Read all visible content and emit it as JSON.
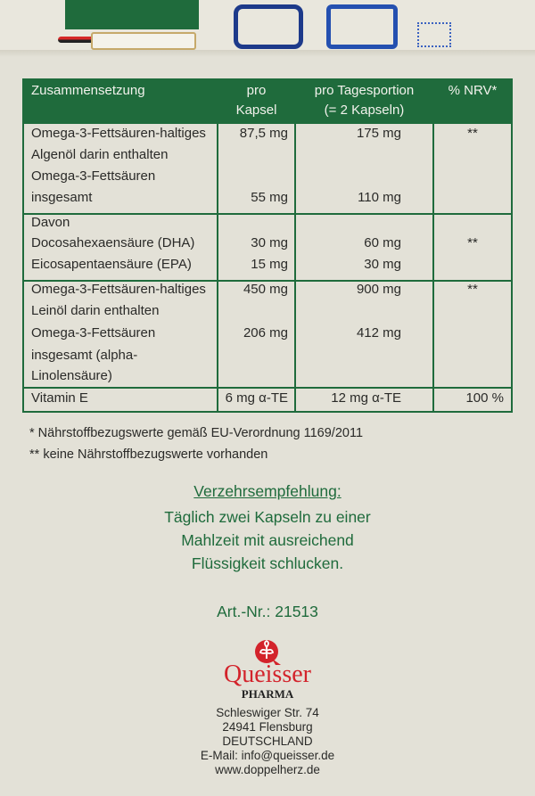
{
  "table": {
    "headers": [
      "Zusammensetzung",
      "pro\nKapsel",
      "pro Tagesportion\n(= 2 Kapseln)",
      "% NRV*"
    ],
    "header_lines": {
      "c1": [
        "pro",
        "Kapsel"
      ],
      "c2": [
        "pro Tagesportion",
        "(= 2 Kapseln)"
      ]
    },
    "rows": [
      {
        "name": "Omega-3-Fettsäuren-haltiges",
        "kapsel": "87,5 mg",
        "tag": "175 mg",
        "nrv": "**"
      },
      {
        "name": "Algenöl darin enthalten"
      },
      {
        "name": "Omega-3-Fettsäuren"
      },
      {
        "name": "insgesamt",
        "kapsel": "55 mg",
        "tag": "110 mg"
      },
      {
        "name": "Davon"
      },
      {
        "name": "Docosahexaensäure (DHA)",
        "kapsel": "30 mg",
        "tag": "60 mg",
        "nrv": "**"
      },
      {
        "name": "Eicosapentaensäure (EPA)",
        "kapsel": "15 mg",
        "tag": "30 mg"
      },
      {
        "name": "Omega-3-Fettsäuren-haltiges",
        "kapsel": "450 mg",
        "tag": "900 mg",
        "nrv": "**"
      },
      {
        "name": "Leinöl darin enthalten"
      },
      {
        "name": "Omega-3-Fettsäuren",
        "kapsel": "206 mg",
        "tag": "412 mg"
      },
      {
        "name": "insgesamt (alpha-"
      },
      {
        "name": "Linolensäure)"
      },
      {
        "name": "Vitamin E",
        "kapsel": "6 mg α-TE",
        "tag": "12 mg α-TE",
        "nrv": "100 %"
      }
    ]
  },
  "footnotes": [
    "*  Nährstoffbezugswerte gemäß EU-Verordnung 1169/2011",
    "** keine Nährstoffbezugswerte vorhanden"
  ],
  "recommendation": {
    "title": "Verzehrsempfehlung:",
    "lines": [
      "Täglich zwei Kapseln zu einer",
      "Mahlzeit mit ausreichend",
      "Flüssigkeit schlucken."
    ]
  },
  "article": "Art.-Nr.: 21513",
  "brand": {
    "name": "Queisser",
    "sub": "PHARMA",
    "color": "#d3232b"
  },
  "address": [
    "Schleswiger Str. 74",
    "24941 Flensburg",
    "DEUTSCHLAND",
    "E-Mail: info@queisser.de",
    "www.doppelherz.de"
  ],
  "colors": {
    "green": "#1f6b3c",
    "background": "#e3e1d7"
  }
}
